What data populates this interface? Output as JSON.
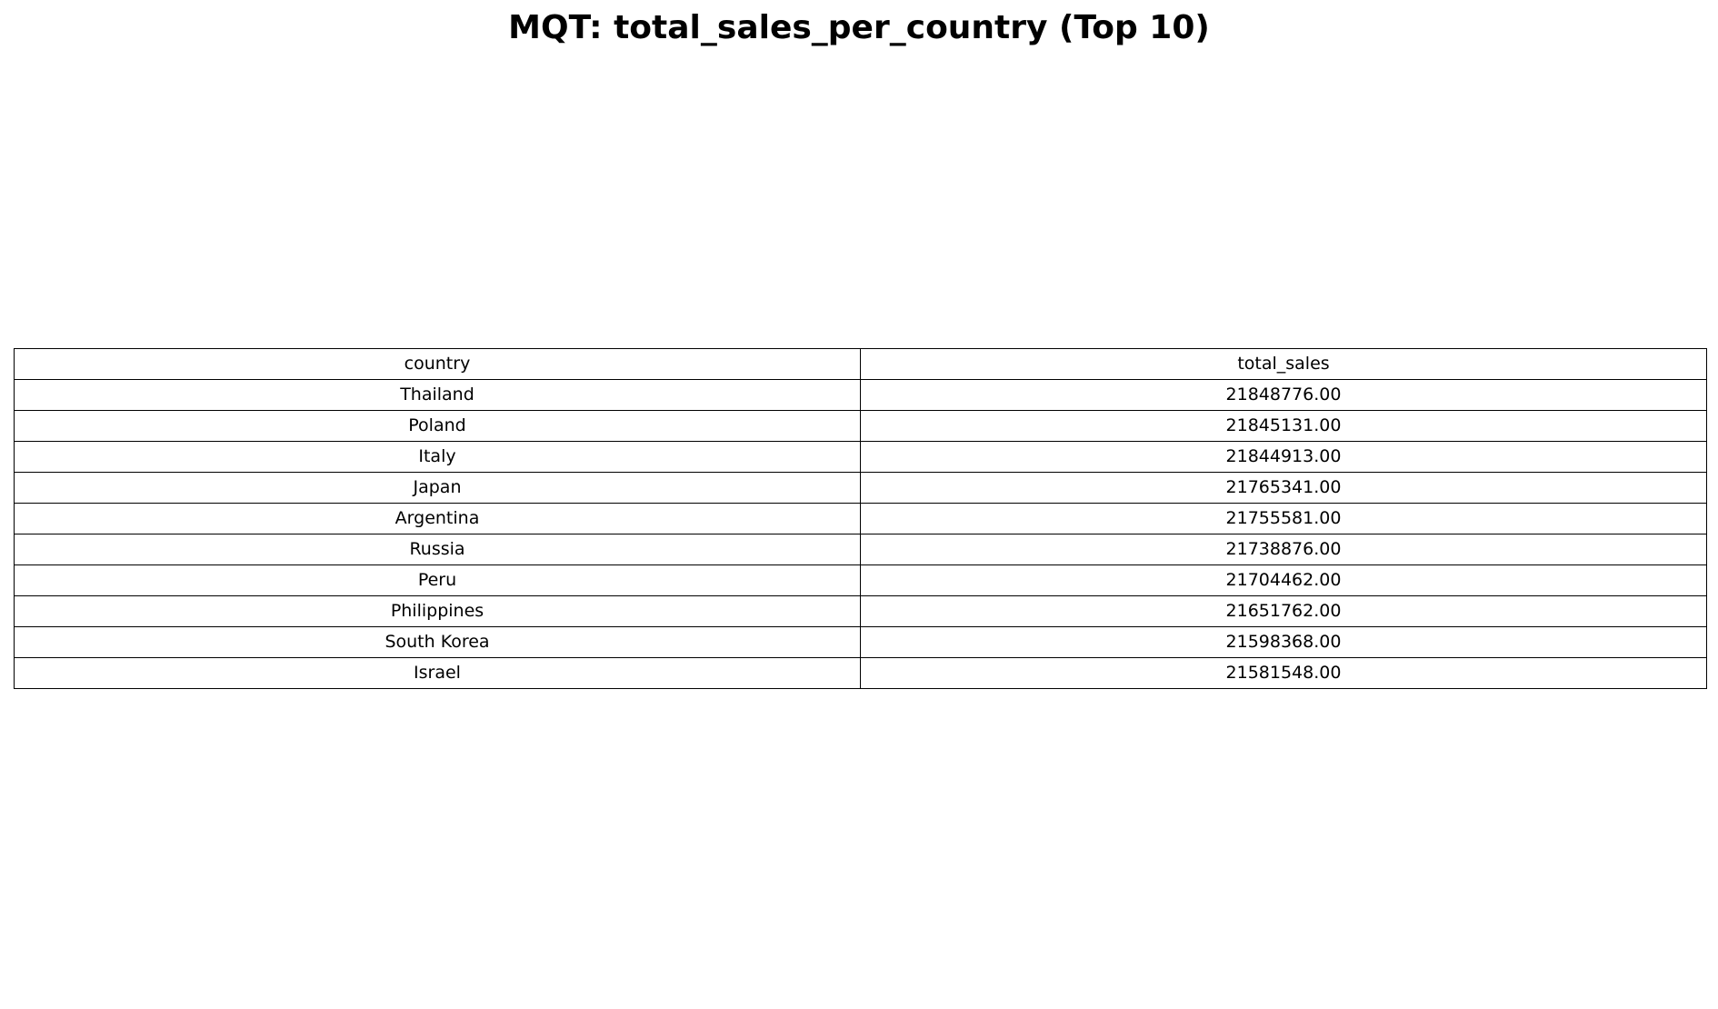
{
  "chart_data": {
    "type": "table",
    "title": "MQT: total_sales_per_country (Top 10)",
    "columns": [
      "country",
      "total_sales"
    ],
    "rows": [
      {
        "country": "Thailand",
        "total_sales": "21848776.00"
      },
      {
        "country": "Poland",
        "total_sales": "21845131.00"
      },
      {
        "country": "Italy",
        "total_sales": "21844913.00"
      },
      {
        "country": "Japan",
        "total_sales": "21765341.00"
      },
      {
        "country": "Argentina",
        "total_sales": "21755581.00"
      },
      {
        "country": "Russia",
        "total_sales": "21738876.00"
      },
      {
        "country": "Peru",
        "total_sales": "21704462.00"
      },
      {
        "country": "Philippines",
        "total_sales": "21651762.00"
      },
      {
        "country": "South Korea",
        "total_sales": "21598368.00"
      },
      {
        "country": "Israel",
        "total_sales": "21581548.00"
      }
    ]
  }
}
